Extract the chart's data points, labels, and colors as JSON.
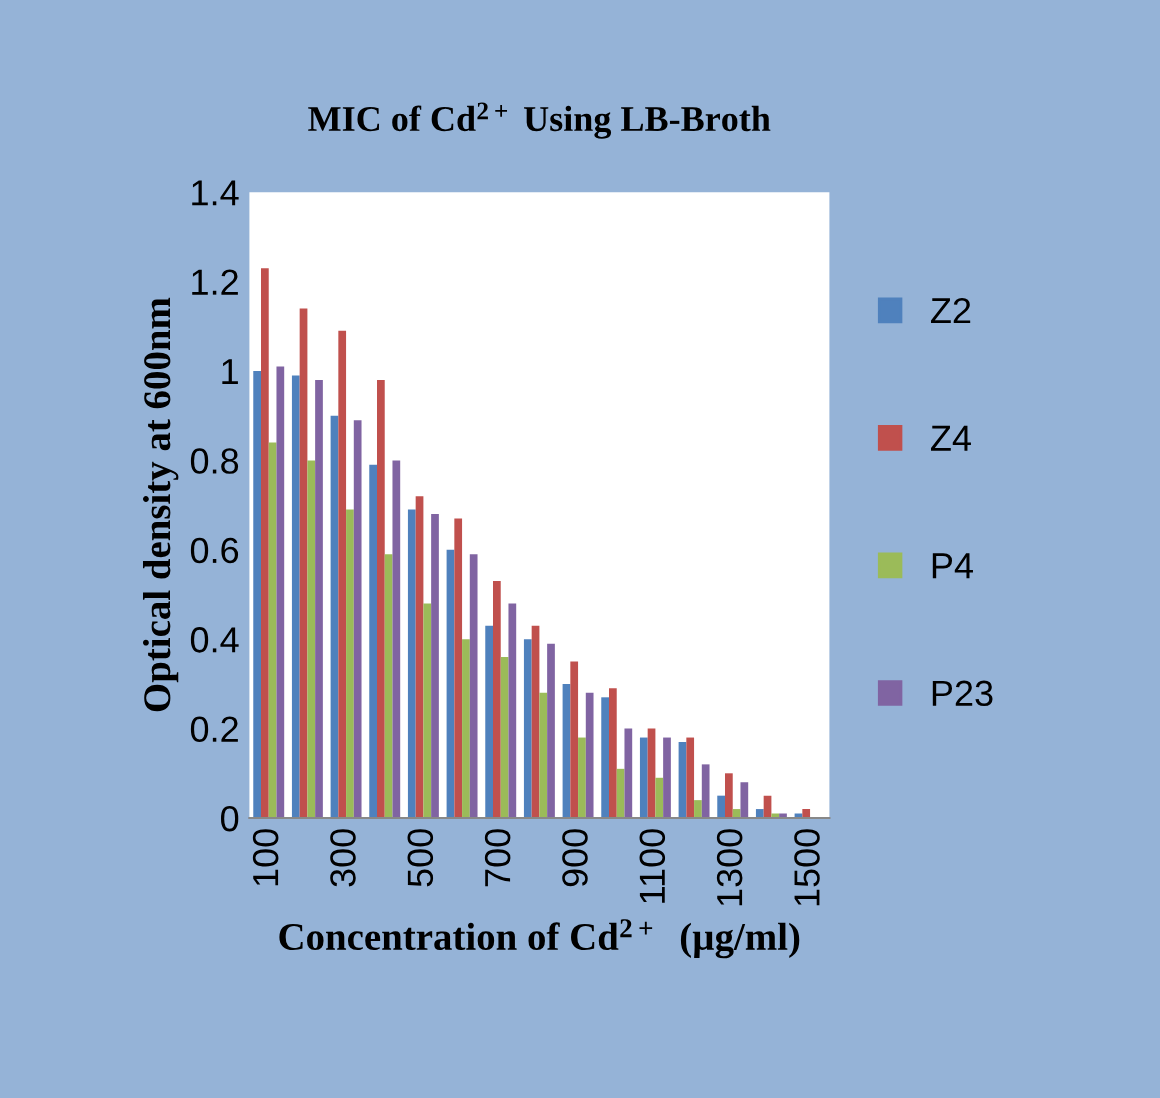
{
  "chart_data": {
    "type": "bar",
    "title": "MIC of Cd$^{2+}$ Using LB-Broth",
    "xlabel": "Concentration of Cd$^{2+}$  (µg/ml)",
    "ylabel": "Optical density at 600nm",
    "categories": [
      "100",
      null,
      "300",
      null,
      "500",
      null,
      "700",
      null,
      "900",
      null,
      "1100",
      null,
      "1300",
      null,
      "1500"
    ],
    "series": [
      {
        "name": "Z2",
        "color": "#4f81bd",
        "values": [
          1.0,
          0.99,
          0.9,
          0.79,
          0.69,
          0.6,
          0.43,
          0.4,
          0.3,
          0.27,
          0.18,
          0.17,
          0.05,
          0.02,
          0.01
        ]
      },
      {
        "name": "Z4",
        "color": "#c0504d",
        "values": [
          1.23,
          1.14,
          1.09,
          0.98,
          0.72,
          0.67,
          0.53,
          0.43,
          0.35,
          0.29,
          0.2,
          0.18,
          0.1,
          0.05,
          0.02
        ]
      },
      {
        "name": "P4",
        "color": "#9bbb59",
        "values": [
          0.84,
          0.8,
          0.69,
          0.59,
          0.48,
          0.4,
          0.36,
          0.28,
          0.18,
          0.11,
          0.09,
          0.04,
          0.02,
          0.01,
          0.0
        ]
      },
      {
        "name": "P23",
        "color": "#8064a2",
        "values": [
          1.01,
          0.98,
          0.89,
          0.8,
          0.68,
          0.59,
          0.48,
          0.39,
          0.28,
          0.2,
          0.18,
          0.12,
          0.08,
          0.01,
          0.0
        ]
      }
    ],
    "ylim": [
      0,
      1.4
    ],
    "yticks": [
      0,
      0.2,
      0.4,
      0.6,
      0.8,
      1,
      1.2,
      1.4
    ],
    "grid": false,
    "legend": "right"
  }
}
